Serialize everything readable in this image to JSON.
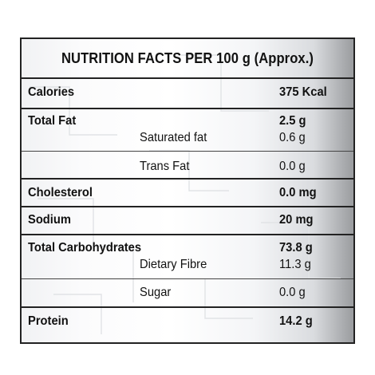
{
  "title": "NUTRITION FACTS PER 100 g (Approx.)",
  "rows": {
    "calories": {
      "label": "Calories",
      "value": "375 Kcal"
    },
    "total_fat": {
      "label": "Total Fat",
      "value": "2.5 g"
    },
    "saturated_fat": {
      "label": "Saturated fat",
      "value": "0.6 g"
    },
    "trans_fat": {
      "label": "Trans Fat",
      "value": "0.0 g"
    },
    "cholesterol": {
      "label": "Cholesterol",
      "value": "0.0 mg"
    },
    "sodium": {
      "label": "Sodium",
      "value": "20 mg"
    },
    "total_carbohydrates": {
      "label": "Total Carbohydrates",
      "value": "73.8 g"
    },
    "dietary_fibre": {
      "label": "Dietary Fibre",
      "value": "11.3 g"
    },
    "sugar": {
      "label": "Sugar",
      "value": "0.0 g"
    },
    "protein": {
      "label": "Protein",
      "value": "14.2 g"
    }
  },
  "colors": {
    "border": "#222222",
    "text": "#111111",
    "panel_edge": "#9a9c9f"
  }
}
